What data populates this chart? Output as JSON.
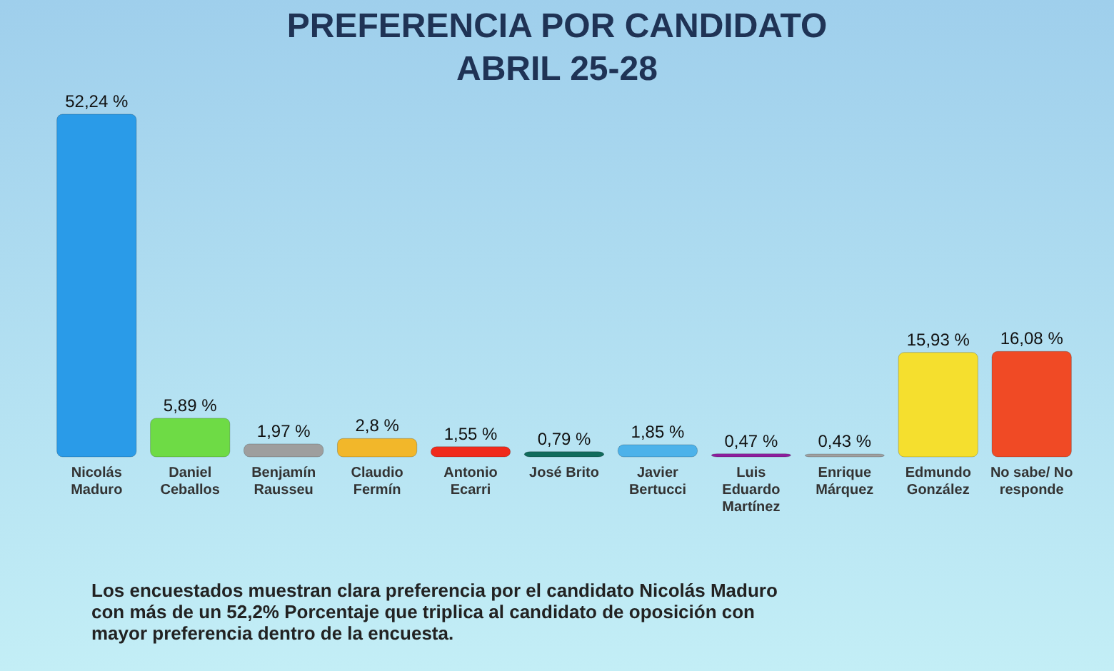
{
  "chart_data": {
    "type": "bar",
    "title": "PREFERENCIA POR CANDIDATO",
    "subtitle": "ABRIL 25-28",
    "categories": [
      "Nicolás Maduro",
      "Daniel Ceballos",
      "Benjamín Rausseu",
      "Claudio Fermín",
      "Antonio Ecarri",
      "José Brito",
      "Javier Bertucci",
      "Luis Eduardo Martínez",
      "Enrique Márquez",
      "Edmundo González",
      "No sabe/ No responde"
    ],
    "values": [
      52.24,
      5.89,
      1.97,
      2.8,
      1.55,
      0.79,
      1.85,
      0.47,
      0.43,
      15.93,
      16.08
    ],
    "value_labels": [
      "52,24 %",
      "5,89 %",
      "1,97 %",
      "2,8 %",
      "1,55 %",
      "0,79 %",
      "1,85 %",
      "0,47 %",
      "0,43 %",
      "15,93 %",
      "16,08 %"
    ],
    "colors": [
      "#2a9be8",
      "#6edb45",
      "#9e9e9e",
      "#f2b72a",
      "#f02a1c",
      "#116b5c",
      "#4cb2ea",
      "#8e1e9e",
      "#a0a0a0",
      "#f5df2e",
      "#f04a25"
    ],
    "annotations": [
      "Los encuestados muestran clara preferencia por el candidato Nicolás Maduro con más de un 52,2%  Porcentaje que triplica al candidato de oposición con mayor preferencia dentro de la encuesta."
    ]
  }
}
